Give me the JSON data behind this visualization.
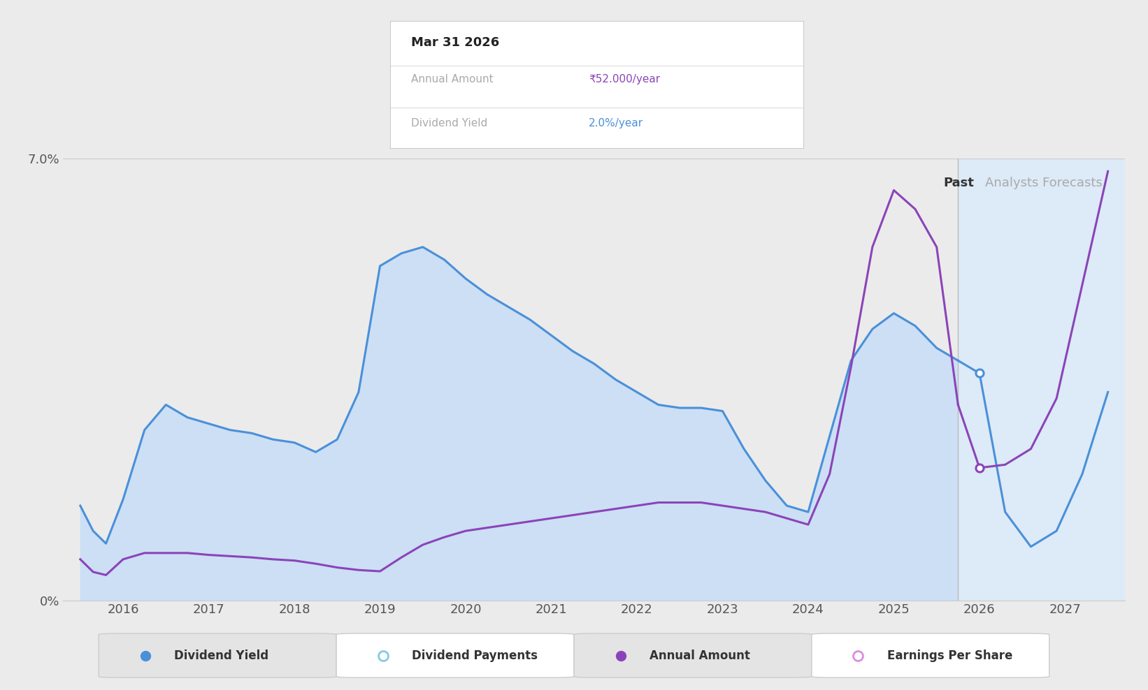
{
  "background_color": "#ebebeb",
  "plot_bg_color": "#ebebeb",
  "forecast_bg_color": "#ddeaf7",
  "past_fill_color": "#ccdff5",
  "ylim": [
    0,
    7.0
  ],
  "xmin": 2015.3,
  "xmax": 2027.7,
  "xticks": [
    2016,
    2017,
    2018,
    2019,
    2020,
    2021,
    2022,
    2023,
    2024,
    2025,
    2026,
    2027
  ],
  "forecast_start": 2025.75,
  "past_label": "Past",
  "analysts_label": "Analysts Forecasts",
  "tooltip": {
    "date": "Mar 31 2026",
    "annual_amount_label": "Annual Amount",
    "annual_amount_value": "₹52.000/year",
    "dividend_yield_label": "Dividend Yield",
    "dividend_yield_value": "2.0%/year"
  },
  "dividend_yield_color": "#4a90d9",
  "annual_amount_color": "#8b44b8",
  "dividend_yield_x": [
    2015.5,
    2015.65,
    2015.8,
    2016.0,
    2016.25,
    2016.5,
    2016.75,
    2017.0,
    2017.25,
    2017.5,
    2017.75,
    2018.0,
    2018.25,
    2018.5,
    2018.75,
    2019.0,
    2019.25,
    2019.5,
    2019.75,
    2020.0,
    2020.25,
    2020.5,
    2020.75,
    2021.0,
    2021.25,
    2021.5,
    2021.75,
    2022.0,
    2022.25,
    2022.5,
    2022.75,
    2023.0,
    2023.25,
    2023.5,
    2023.75,
    2024.0,
    2024.25,
    2024.5,
    2024.75,
    2025.0,
    2025.25,
    2025.5,
    2025.75
  ],
  "dividend_yield_y": [
    1.5,
    1.1,
    0.9,
    1.6,
    2.7,
    3.1,
    2.9,
    2.8,
    2.7,
    2.65,
    2.55,
    2.5,
    2.35,
    2.55,
    3.3,
    5.3,
    5.5,
    5.6,
    5.4,
    5.1,
    4.85,
    4.65,
    4.45,
    4.2,
    3.95,
    3.75,
    3.5,
    3.3,
    3.1,
    3.05,
    3.05,
    3.0,
    2.4,
    1.9,
    1.5,
    1.4,
    2.6,
    3.8,
    4.3,
    4.55,
    4.35,
    4.0,
    3.8
  ],
  "dividend_yield_fc_x": [
    2025.75,
    2026.0,
    2026.3,
    2026.6,
    2026.9,
    2027.2,
    2027.5
  ],
  "dividend_yield_fc_y": [
    3.8,
    3.6,
    1.4,
    0.85,
    1.1,
    2.0,
    3.3
  ],
  "annual_amount_x": [
    2015.5,
    2015.65,
    2015.8,
    2016.0,
    2016.25,
    2016.5,
    2016.75,
    2017.0,
    2017.25,
    2017.5,
    2017.75,
    2018.0,
    2018.25,
    2018.5,
    2018.75,
    2019.0,
    2019.25,
    2019.5,
    2019.75,
    2020.0,
    2020.25,
    2020.5,
    2020.75,
    2021.0,
    2021.25,
    2021.5,
    2021.75,
    2022.0,
    2022.25,
    2022.5,
    2022.75,
    2023.0,
    2023.25,
    2023.5,
    2023.75,
    2024.0,
    2024.25,
    2024.5,
    2024.75,
    2025.0,
    2025.25,
    2025.5,
    2025.75
  ],
  "annual_amount_y": [
    0.65,
    0.45,
    0.4,
    0.65,
    0.75,
    0.75,
    0.75,
    0.72,
    0.7,
    0.68,
    0.65,
    0.63,
    0.58,
    0.52,
    0.48,
    0.46,
    0.68,
    0.88,
    1.0,
    1.1,
    1.15,
    1.2,
    1.25,
    1.3,
    1.35,
    1.4,
    1.45,
    1.5,
    1.55,
    1.55,
    1.55,
    1.5,
    1.45,
    1.4,
    1.3,
    1.2,
    2.0,
    3.7,
    5.6,
    6.5,
    6.2,
    5.6,
    3.1
  ],
  "annual_amount_fc_x": [
    2025.75,
    2026.0,
    2026.3,
    2026.6,
    2026.9,
    2027.2,
    2027.5
  ],
  "annual_amount_fc_y": [
    3.1,
    2.1,
    2.15,
    2.4,
    3.2,
    5.0,
    6.8
  ],
  "highlight_yield_x": 2026.0,
  "highlight_yield_y": 3.6,
  "highlight_amount_x": 2026.0,
  "highlight_amount_y": 2.1,
  "legend_items": [
    {
      "label": "Dividend Yield",
      "color": "#4a90d9",
      "filled": true
    },
    {
      "label": "Dividend Payments",
      "color": "#82cce0",
      "filled": false
    },
    {
      "label": "Annual Amount",
      "color": "#8b44b8",
      "filled": true
    },
    {
      "label": "Earnings Per Share",
      "color": "#d98ee0",
      "filled": false
    }
  ]
}
